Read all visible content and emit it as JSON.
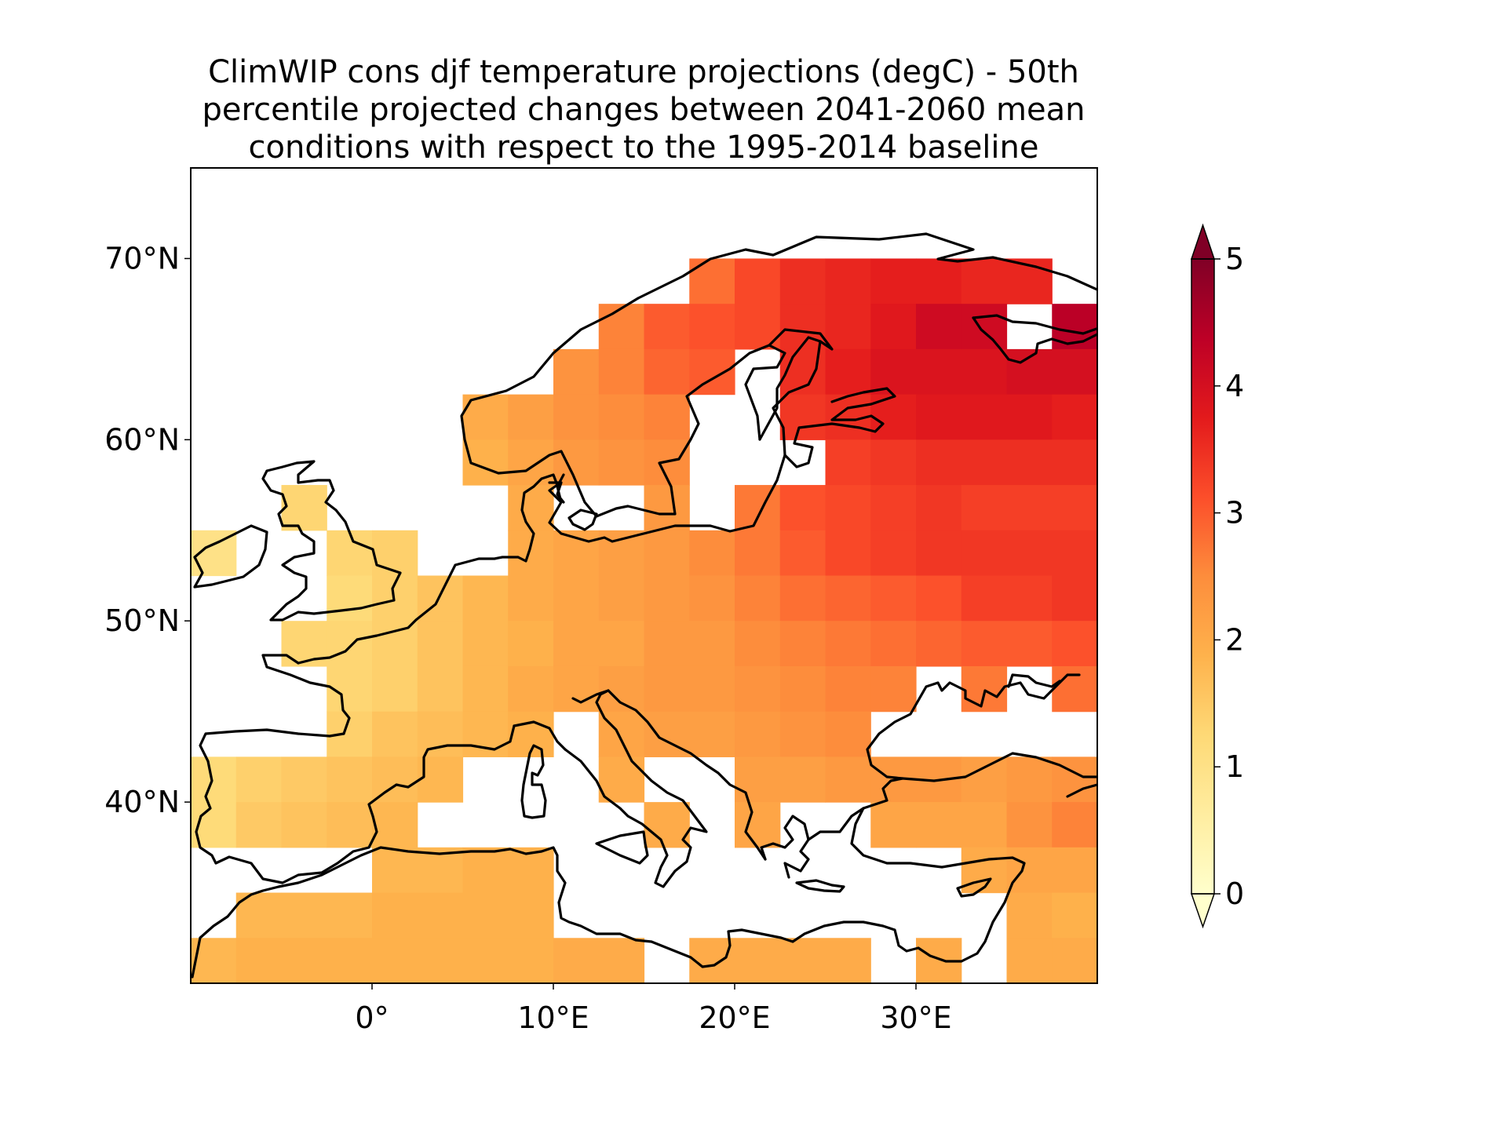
{
  "title_lines": [
    "ClimWIP cons djf temperature projections (degC) - 50th",
    "percentile projected changes between 2041-2060 mean",
    "conditions with respect to the 1995-2014 baseline"
  ],
  "chart_data": {
    "type": "heatmap",
    "title": "ClimWIP cons djf temperature projections (degC) - 50th percentile projected changes between 2041-2060 mean conditions with respect to the 1995-2014 baseline",
    "projection": "plate-carree",
    "lon_range": [
      -10,
      40
    ],
    "lat_range": [
      30,
      75
    ],
    "grid_resolution_deg": 2.5,
    "x_ticks": [
      {
        "value": 0,
        "label": "0°"
      },
      {
        "value": 10,
        "label": "10°E"
      },
      {
        "value": 20,
        "label": "20°E"
      },
      {
        "value": 30,
        "label": "30°E"
      }
    ],
    "y_ticks": [
      {
        "value": 40,
        "label": "40°N"
      },
      {
        "value": 50,
        "label": "50°N"
      },
      {
        "value": 60,
        "label": "60°N"
      },
      {
        "value": 70,
        "label": "70°N"
      }
    ],
    "colorbar": {
      "min": 0,
      "max": 5,
      "ticks": [
        {
          "value": 0,
          "label": "0"
        },
        {
          "value": 1,
          "label": "1"
        },
        {
          "value": 2,
          "label": "2"
        },
        {
          "value": 3,
          "label": "3"
        },
        {
          "value": 4,
          "label": "4"
        },
        {
          "value": 5,
          "label": "5"
        }
      ],
      "extend": "both",
      "colormap": [
        "#ffffcc",
        "#ffeda0",
        "#fed976",
        "#feb24c",
        "#fd8d3c",
        "#fc4e2a",
        "#e31a1c",
        "#bd0026",
        "#800026"
      ]
    },
    "cells_note": "lat band south edge → list of [lon_start, lon_end, value]; cells are 2.5° wide",
    "rows": [
      {
        "lat": 67.5,
        "runs": [
          [
            17.5,
            20.0,
            2.8
          ],
          [
            20.0,
            22.5,
            3.2
          ],
          [
            22.5,
            25.0,
            3.5
          ],
          [
            25.0,
            27.5,
            3.6
          ],
          [
            27.5,
            30.0,
            3.7
          ],
          [
            30.0,
            32.5,
            3.7
          ],
          [
            32.5,
            37.5,
            3.6
          ]
        ]
      },
      {
        "lat": 65.0,
        "runs": [
          [
            12.5,
            15.0,
            2.6
          ],
          [
            15.0,
            17.5,
            3.0
          ],
          [
            17.5,
            20.0,
            3.1
          ],
          [
            20.0,
            22.5,
            3.2
          ],
          [
            22.5,
            25.0,
            3.5
          ],
          [
            25.0,
            27.5,
            3.6
          ],
          [
            27.5,
            30.0,
            3.8
          ],
          [
            30.0,
            32.5,
            4.1
          ],
          [
            32.5,
            35.0,
            4.1
          ],
          [
            37.5,
            40.0,
            4.4
          ]
        ]
      },
      {
        "lat": 62.5,
        "runs": [
          [
            10.0,
            12.5,
            2.4
          ],
          [
            12.5,
            15.0,
            2.6
          ],
          [
            15.0,
            17.5,
            2.9
          ],
          [
            17.5,
            20.0,
            3.0
          ],
          [
            22.5,
            25.0,
            3.5
          ],
          [
            25.0,
            27.5,
            3.7
          ],
          [
            27.5,
            35.0,
            3.9
          ],
          [
            35.0,
            40.0,
            4.0
          ]
        ]
      },
      {
        "lat": 60.0,
        "runs": [
          [
            5.0,
            7.5,
            2.0
          ],
          [
            7.5,
            10.0,
            2.2
          ],
          [
            10.0,
            12.5,
            2.4
          ],
          [
            12.5,
            15.0,
            2.5
          ],
          [
            15.0,
            17.5,
            2.6
          ],
          [
            22.5,
            25.0,
            3.4
          ],
          [
            25.0,
            27.5,
            3.5
          ],
          [
            27.5,
            30.0,
            3.7
          ],
          [
            30.0,
            37.5,
            3.8
          ],
          [
            37.5,
            40.0,
            3.7
          ]
        ]
      },
      {
        "lat": 57.5,
        "runs": [
          [
            5.0,
            7.5,
            1.9
          ],
          [
            7.5,
            10.0,
            2.1
          ],
          [
            10.0,
            12.5,
            2.3
          ],
          [
            12.5,
            15.0,
            2.4
          ],
          [
            15.0,
            17.5,
            2.5
          ],
          [
            25.0,
            27.5,
            3.3
          ],
          [
            27.5,
            30.0,
            3.4
          ],
          [
            30.0,
            35.0,
            3.5
          ],
          [
            35.0,
            40.0,
            3.5
          ]
        ]
      },
      {
        "lat": 55.0,
        "runs": [
          [
            -5.0,
            -2.5,
            1.3
          ],
          [
            7.5,
            10.0,
            2.0
          ],
          [
            15.0,
            17.5,
            2.3
          ],
          [
            20.0,
            22.5,
            2.7
          ],
          [
            22.5,
            25.0,
            3.1
          ],
          [
            25.0,
            27.5,
            3.2
          ],
          [
            27.5,
            30.0,
            3.3
          ],
          [
            30.0,
            32.5,
            3.4
          ],
          [
            32.5,
            40.0,
            3.3
          ]
        ]
      },
      {
        "lat": 52.5,
        "runs": [
          [
            -10.0,
            -7.5,
            1.0
          ],
          [
            -2.5,
            0.0,
            1.3
          ],
          [
            0.0,
            2.5,
            1.4
          ],
          [
            7.5,
            10.0,
            2.0
          ],
          [
            10.0,
            12.5,
            2.1
          ],
          [
            12.5,
            15.0,
            2.2
          ],
          [
            15.0,
            17.5,
            2.3
          ],
          [
            17.5,
            20.0,
            2.5
          ],
          [
            20.0,
            22.5,
            2.7
          ],
          [
            22.5,
            25.0,
            3.0
          ],
          [
            25.0,
            27.5,
            3.2
          ],
          [
            27.5,
            30.0,
            3.3
          ],
          [
            30.0,
            32.5,
            3.4
          ],
          [
            32.5,
            40.0,
            3.4
          ]
        ]
      },
      {
        "lat": 50.0,
        "runs": [
          [
            -2.5,
            0.0,
            1.2
          ],
          [
            0.0,
            2.5,
            1.4
          ],
          [
            2.5,
            5.0,
            1.6
          ],
          [
            5.0,
            7.5,
            1.8
          ],
          [
            7.5,
            10.0,
            2.0
          ],
          [
            10.0,
            12.5,
            2.1
          ],
          [
            12.5,
            15.0,
            2.2
          ],
          [
            15.0,
            17.5,
            2.3
          ],
          [
            17.5,
            20.0,
            2.4
          ],
          [
            20.0,
            22.5,
            2.6
          ],
          [
            22.5,
            25.0,
            2.8
          ],
          [
            25.0,
            27.5,
            2.9
          ],
          [
            27.5,
            30.0,
            3.0
          ],
          [
            30.0,
            32.5,
            3.1
          ],
          [
            32.5,
            37.5,
            3.3
          ],
          [
            37.5,
            40.0,
            3.4
          ]
        ]
      },
      {
        "lat": 47.5,
        "runs": [
          [
            -5.0,
            -2.5,
            1.3
          ],
          [
            -2.5,
            0.0,
            1.3
          ],
          [
            0.0,
            2.5,
            1.4
          ],
          [
            2.5,
            5.0,
            1.6
          ],
          [
            5.0,
            7.5,
            1.8
          ],
          [
            7.5,
            10.0,
            1.9
          ],
          [
            10.0,
            15.0,
            2.1
          ],
          [
            15.0,
            20.0,
            2.3
          ],
          [
            20.0,
            22.5,
            2.5
          ],
          [
            22.5,
            25.0,
            2.6
          ],
          [
            25.0,
            27.5,
            2.7
          ],
          [
            27.5,
            30.0,
            2.8
          ],
          [
            30.0,
            32.5,
            2.9
          ],
          [
            32.5,
            37.5,
            3.0
          ],
          [
            37.5,
            40.0,
            3.1
          ]
        ]
      },
      {
        "lat": 45.0,
        "runs": [
          [
            -2.5,
            0.0,
            1.3
          ],
          [
            0.0,
            2.5,
            1.4
          ],
          [
            2.5,
            5.0,
            1.6
          ],
          [
            5.0,
            7.5,
            1.8
          ],
          [
            7.5,
            10.0,
            2.0
          ],
          [
            10.0,
            12.5,
            2.1
          ],
          [
            12.5,
            15.0,
            2.2
          ],
          [
            15.0,
            20.0,
            2.3
          ],
          [
            20.0,
            22.5,
            2.4
          ],
          [
            22.5,
            25.0,
            2.5
          ],
          [
            25.0,
            27.5,
            2.6
          ],
          [
            27.5,
            30.0,
            2.6
          ],
          [
            32.5,
            35.0,
            2.7
          ],
          [
            37.5,
            40.0,
            2.8
          ]
        ]
      },
      {
        "lat": 42.5,
        "runs": [
          [
            -2.5,
            0.0,
            1.4
          ],
          [
            0.0,
            2.5,
            1.6
          ],
          [
            2.5,
            5.0,
            1.7
          ],
          [
            5.0,
            7.5,
            1.8
          ],
          [
            7.5,
            10.0,
            1.9
          ],
          [
            12.5,
            15.0,
            2.1
          ],
          [
            15.0,
            17.5,
            2.2
          ],
          [
            17.5,
            20.0,
            2.2
          ],
          [
            20.0,
            22.5,
            2.3
          ],
          [
            22.5,
            25.0,
            2.4
          ],
          [
            25.0,
            27.5,
            2.5
          ]
        ]
      },
      {
        "lat": 40.0,
        "runs": [
          [
            -10.0,
            -7.5,
            1.2
          ],
          [
            -7.5,
            -5.0,
            1.4
          ],
          [
            -5.0,
            -2.5,
            1.5
          ],
          [
            -2.5,
            0.0,
            1.6
          ],
          [
            0.0,
            2.5,
            1.7
          ],
          [
            2.5,
            5.0,
            1.8
          ],
          [
            12.5,
            15.0,
            2.0
          ],
          [
            20.0,
            22.5,
            2.2
          ],
          [
            22.5,
            25.0,
            2.2
          ],
          [
            25.0,
            27.5,
            2.3
          ],
          [
            27.5,
            32.5,
            2.3
          ],
          [
            32.5,
            35.0,
            2.2
          ],
          [
            35.0,
            37.5,
            2.3
          ],
          [
            37.5,
            40.0,
            2.4
          ]
        ]
      },
      {
        "lat": 37.5,
        "runs": [
          [
            -10.0,
            -7.5,
            1.2
          ],
          [
            -7.5,
            -5.0,
            1.5
          ],
          [
            -5.0,
            -2.5,
            1.6
          ],
          [
            -2.5,
            0.0,
            1.7
          ],
          [
            0.0,
            2.5,
            1.8
          ],
          [
            15.0,
            17.5,
            2.0
          ],
          [
            20.0,
            22.5,
            2.1
          ],
          [
            27.5,
            30.0,
            2.1
          ],
          [
            30.0,
            32.5,
            2.1
          ],
          [
            32.5,
            35.0,
            2.1
          ],
          [
            35.0,
            37.5,
            2.4
          ],
          [
            37.5,
            40.0,
            2.6
          ]
        ]
      },
      {
        "lat": 35.0,
        "runs": [
          [
            0.0,
            5.0,
            1.8
          ],
          [
            5.0,
            10.0,
            1.9
          ],
          [
            32.5,
            35.0,
            2.0
          ],
          [
            35.0,
            40.0,
            2.1
          ]
        ]
      },
      {
        "lat": 32.5,
        "runs": [
          [
            -7.5,
            -5.0,
            1.8
          ],
          [
            -5.0,
            0.0,
            1.8
          ],
          [
            0.0,
            5.0,
            1.9
          ],
          [
            5.0,
            10.0,
            1.9
          ],
          [
            35.0,
            37.5,
            2.0
          ],
          [
            37.5,
            40.0,
            1.9
          ]
        ]
      },
      {
        "lat": 30.0,
        "runs": [
          [
            -10.0,
            -7.5,
            1.8
          ],
          [
            -7.5,
            -5.0,
            1.9
          ],
          [
            -5.0,
            0.0,
            1.9
          ],
          [
            0.0,
            5.0,
            1.9
          ],
          [
            5.0,
            10.0,
            1.9
          ],
          [
            10.0,
            15.0,
            2.0
          ],
          [
            17.5,
            20.0,
            2.0
          ],
          [
            20.0,
            27.5,
            2.0
          ],
          [
            30.0,
            32.5,
            2.0
          ],
          [
            35.0,
            37.5,
            2.0
          ],
          [
            37.5,
            40.0,
            2.0
          ]
        ]
      }
    ]
  }
}
